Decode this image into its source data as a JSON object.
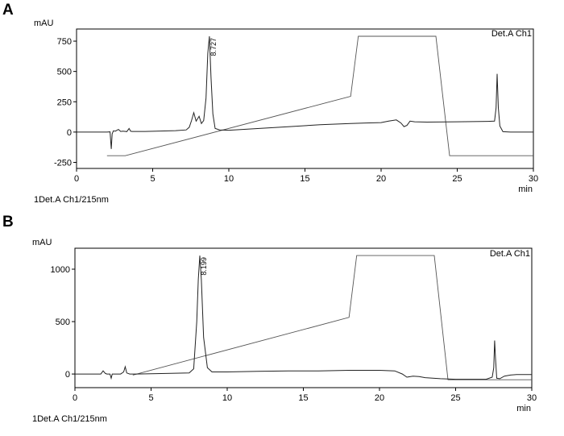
{
  "chart_data": [
    {
      "type": "line",
      "panel_label": "A",
      "ylabel": "mAU",
      "xlabel": "min",
      "legend": "Det.A Ch1",
      "footer": "1Det.A Ch1/215nm",
      "xlim": [
        0,
        30
      ],
      "ylim": [
        -300,
        850
      ],
      "xticks": [
        0,
        5,
        10,
        15,
        20,
        25,
        30
      ],
      "yticks": [
        -250,
        0,
        250,
        500,
        750
      ],
      "peak_annotation": {
        "x": 8.727,
        "y": 790,
        "label": "8.727"
      },
      "series": [
        {
          "role": "chromatogram",
          "x": [
            0,
            2.0,
            2.2,
            2.28,
            2.34,
            2.42,
            2.55,
            2.75,
            2.9,
            3.05,
            3.3,
            3.45,
            3.55,
            3.65,
            4.5,
            6.0,
            6.5,
            7.2,
            7.4,
            7.55,
            7.7,
            7.85,
            7.95,
            8.05,
            8.2,
            8.35,
            8.5,
            8.62,
            8.727,
            8.83,
            8.95,
            9.1,
            9.4,
            10,
            12,
            14,
            16,
            18,
            19,
            20,
            20.5,
            21.0,
            21.3,
            21.5,
            21.7,
            21.9,
            22.2,
            23,
            25,
            27,
            27.45,
            27.55,
            27.62,
            27.7,
            27.8,
            28.0,
            28.5,
            30
          ],
          "y": [
            0,
            0,
            2,
            -140,
            -15,
            10,
            8,
            22,
            5,
            8,
            4,
            30,
            7,
            5,
            5,
            10,
            12,
            18,
            40,
            95,
            160,
            90,
            110,
            130,
            70,
            95,
            280,
            650,
            790,
            450,
            150,
            30,
            18,
            15,
            30,
            45,
            60,
            70,
            75,
            78,
            90,
            100,
            75,
            45,
            55,
            90,
            85,
            82,
            85,
            88,
            90,
            200,
            480,
            200,
            50,
            3,
            0,
            0
          ]
        },
        {
          "role": "gradient",
          "x": [
            2.0,
            3.2,
            18.0,
            18.5,
            23.6,
            24.5,
            30
          ],
          "y": [
            -195,
            -195,
            295,
            790,
            790,
            -195,
            -195
          ]
        }
      ]
    },
    {
      "type": "line",
      "panel_label": "B",
      "ylabel": "mAU",
      "xlabel": "min",
      "legend": "Det.A Ch1",
      "footer": "1Det.A Ch1/215nm",
      "xlim": [
        0,
        30
      ],
      "ylim": [
        -130,
        1200
      ],
      "xticks": [
        0,
        5,
        10,
        15,
        20,
        25,
        30
      ],
      "yticks": [
        0,
        500,
        1000
      ],
      "peak_annotation": {
        "x": 8.199,
        "y": 1130,
        "label": "8.199"
      },
      "series": [
        {
          "role": "chromatogram",
          "x": [
            0,
            1.7,
            1.85,
            2.0,
            2.1,
            2.3,
            2.38,
            2.45,
            2.6,
            3.0,
            3.2,
            3.3,
            3.4,
            3.6,
            4,
            6,
            7.5,
            7.8,
            8.0,
            8.1,
            8.199,
            8.3,
            8.45,
            8.7,
            9,
            10,
            12,
            14,
            16,
            18,
            20,
            21.0,
            21.5,
            21.8,
            22.2,
            22.6,
            23,
            24,
            25,
            27,
            27.4,
            27.5,
            27.56,
            27.62,
            27.7,
            27.9,
            28.2,
            28.6,
            29,
            30
          ],
          "y": [
            0,
            0,
            30,
            5,
            0,
            0,
            -40,
            0,
            0,
            0,
            20,
            70,
            10,
            0,
            0,
            5,
            10,
            50,
            500,
            900,
            1130,
            900,
            350,
            60,
            20,
            20,
            25,
            30,
            30,
            35,
            35,
            30,
            0,
            -30,
            -20,
            -25,
            -35,
            -45,
            -50,
            -50,
            -30,
            60,
            320,
            150,
            -40,
            -45,
            -20,
            -10,
            -5,
            -5
          ]
        },
        {
          "role": "gradient",
          "x": [
            3.8,
            18.0,
            18.5,
            23.6,
            24.5,
            30
          ],
          "y": [
            -10,
            540,
            1130,
            1130,
            -55,
            -55
          ]
        }
      ]
    }
  ]
}
